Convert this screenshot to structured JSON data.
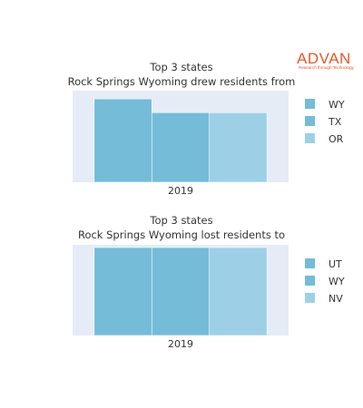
{
  "logo": {
    "name": "ADVAN",
    "tagline": "Research through Technology",
    "color": "#e8572a"
  },
  "colors": {
    "plot_bg": "#e5ecf6",
    "page_bg": "#ffffff",
    "text": "#333333"
  },
  "chart_data": [
    {
      "type": "bar",
      "title": "Top 3 states",
      "subtitle": "Rock Springs Wyoming drew residents from",
      "categories": [
        "2019"
      ],
      "series": [
        {
          "name": "WY",
          "values": [
            0.91
          ],
          "color": "#74bcd8"
        },
        {
          "name": "TX",
          "values": [
            0.76
          ],
          "color": "#74bcd8"
        },
        {
          "name": "OR",
          "values": [
            0.76
          ],
          "color": "#9dd0e6"
        }
      ],
      "ylim": [
        0,
        1
      ],
      "grid": false,
      "legend": "right",
      "xlabel": "",
      "ylabel": ""
    },
    {
      "type": "bar",
      "title": "Top 3 states",
      "subtitle": "Rock Springs Wyoming lost residents to",
      "categories": [
        "2019"
      ],
      "series": [
        {
          "name": "UT",
          "values": [
            0.97
          ],
          "color": "#74bcd8"
        },
        {
          "name": "WY",
          "values": [
            0.97
          ],
          "color": "#74bcd8"
        },
        {
          "name": "NV",
          "values": [
            0.97
          ],
          "color": "#9dd0e6"
        }
      ],
      "ylim": [
        0,
        1
      ],
      "grid": false,
      "legend": "right",
      "xlabel": "",
      "ylabel": ""
    }
  ]
}
